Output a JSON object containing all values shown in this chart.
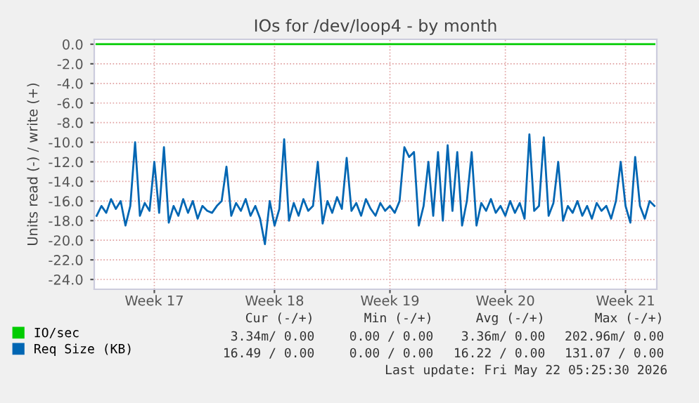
{
  "chart_data": {
    "type": "line",
    "title": "IOs for /dev/loop4 - by month",
    "ylabel": "Units read (-) / write (+)",
    "categories": [
      null,
      null,
      null,
      null,
      null,
      null,
      null,
      null,
      null,
      null,
      null,
      null,
      "Week 17",
      null,
      null,
      null,
      null,
      null,
      null,
      null,
      null,
      null,
      null,
      null,
      null,
      null,
      null,
      null,
      null,
      null,
      null,
      null,
      null,
      null,
      null,
      null,
      null,
      "Week 18",
      null,
      null,
      null,
      null,
      null,
      null,
      null,
      null,
      null,
      null,
      null,
      null,
      null,
      null,
      null,
      null,
      null,
      null,
      null,
      null,
      null,
      null,
      null,
      "Week 19",
      null,
      null,
      null,
      null,
      null,
      null,
      null,
      null,
      null,
      null,
      null,
      null,
      null,
      null,
      null,
      null,
      null,
      null,
      null,
      null,
      null,
      null,
      null,
      "Week 20",
      null,
      null,
      null,
      null,
      null,
      null,
      null,
      null,
      null,
      null,
      null,
      null,
      null,
      null,
      null,
      null,
      null,
      null,
      null,
      null,
      null,
      null,
      null,
      null,
      "Week 21",
      null,
      null,
      null,
      null,
      null,
      null
    ],
    "ylim": [
      -25,
      0.5
    ],
    "yticks": [
      {
        "value": 0,
        "label": "0.0"
      },
      {
        "value": -2,
        "label": "-2.0"
      },
      {
        "value": -4,
        "label": "-4.0"
      },
      {
        "value": -6,
        "label": "-6.0"
      },
      {
        "value": -8,
        "label": "-8.0"
      },
      {
        "value": -10,
        "label": "-10.0"
      },
      {
        "value": -12,
        "label": "-12.0"
      },
      {
        "value": -14,
        "label": "-14.0"
      },
      {
        "value": -16,
        "label": "-16.0"
      },
      {
        "value": -18,
        "label": "-18.0"
      },
      {
        "value": -20,
        "label": "-20.0"
      },
      {
        "value": -22,
        "label": "-22.0"
      },
      {
        "value": -24,
        "label": "-24.0"
      }
    ],
    "grid": true,
    "legend": "bottom left",
    "series": [
      {
        "name": "IO/sec",
        "color": "#00cc00",
        "values": [
          0,
          0,
          0,
          0,
          0,
          0,
          0,
          0,
          0,
          0,
          0,
          0,
          0,
          0,
          0,
          0,
          0,
          0,
          0,
          0,
          0,
          0,
          0,
          0,
          0,
          0,
          0,
          0,
          0,
          0,
          0,
          0,
          0,
          0,
          0,
          0,
          0,
          0,
          0,
          0,
          0,
          0,
          0,
          0,
          0,
          0,
          0,
          0,
          0,
          0,
          0,
          0,
          0,
          0,
          0,
          0,
          0,
          0,
          0,
          0,
          0,
          0,
          0,
          0,
          0,
          0,
          0,
          0,
          0,
          0,
          0,
          0,
          0,
          0,
          0,
          0,
          0,
          0,
          0,
          0,
          0,
          0,
          0,
          0,
          0,
          0,
          0,
          0,
          0,
          0,
          0,
          0,
          0,
          0,
          0,
          0,
          0,
          0,
          0,
          0,
          0,
          0,
          0,
          0,
          0,
          0,
          0,
          0,
          0,
          0,
          0,
          0,
          0,
          0,
          0,
          0,
          0
        ]
      },
      {
        "name": "Req Size (KB)",
        "color": "#0066b3",
        "values": [
          -17.5,
          -16.5,
          -17.2,
          -15.8,
          -16.8,
          -16.0,
          -18.5,
          -16.5,
          -10.0,
          -17.5,
          -16.2,
          -17.0,
          -12.0,
          -17.2,
          -10.5,
          -18.2,
          -16.5,
          -17.5,
          -15.8,
          -17.2,
          -16.0,
          -17.8,
          -16.5,
          -17.0,
          -17.2,
          -16.5,
          -16.0,
          -12.5,
          -17.5,
          -16.2,
          -17.0,
          -15.8,
          -17.5,
          -16.5,
          -17.8,
          -20.4,
          -16.0,
          -18.5,
          -16.8,
          -9.7,
          -18.0,
          -16.2,
          -17.5,
          -15.8,
          -17.0,
          -16.5,
          -12.0,
          -18.3,
          -16.0,
          -17.2,
          -15.6,
          -16.8,
          -11.6,
          -17.0,
          -16.2,
          -17.5,
          -15.8,
          -16.8,
          -17.5,
          -16.2,
          -17.0,
          -16.5,
          -17.2,
          -16.0,
          -10.5,
          -11.5,
          -11.0,
          -18.5,
          -16.5,
          -12.0,
          -17.5,
          -11.0,
          -18.0,
          -10.3,
          -17.0,
          -11.0,
          -18.5,
          -16.0,
          -11.0,
          -18.5,
          -16.2,
          -17.0,
          -15.8,
          -17.2,
          -16.5,
          -17.5,
          -16.0,
          -17.2,
          -16.2,
          -17.8,
          -9.2,
          -17.0,
          -16.5,
          -9.5,
          -17.5,
          -16.2,
          -12.0,
          -18.0,
          -16.5,
          -17.2,
          -16.0,
          -17.5,
          -16.5,
          -17.8,
          -16.2,
          -17.0,
          -16.5,
          -17.8,
          -16.0,
          -12.0,
          -16.5,
          -18.2,
          -11.5,
          -16.5,
          -17.8,
          -16.0,
          -16.5
        ]
      }
    ],
    "annotations": [
      "Cur (-/+)",
      "Min (-/+)",
      "Avg (-/+)",
      "Max (-/+)",
      "3.34m/ 0.00",
      "0.00 / 0.00",
      "3.36m/ 0.00",
      "202.96m/ 0.00",
      "16.49 / 0.00",
      "0.00 / 0.00",
      "16.22 / 0.00",
      "131.07 / 0.00",
      "Last update: Fri May 22 05:25:30 2026"
    ]
  }
}
